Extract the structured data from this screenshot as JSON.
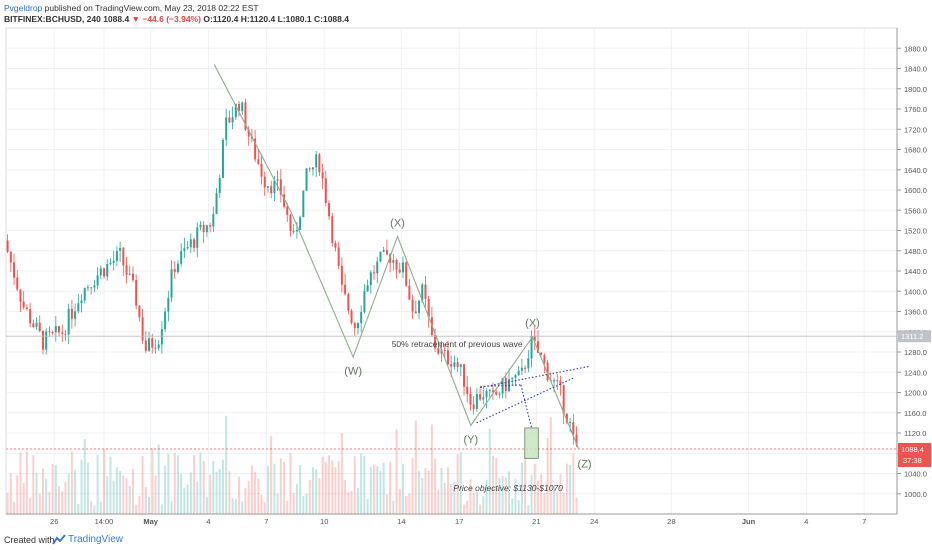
{
  "header": {
    "author": "Pvgeldrop",
    "published": "published on TradingView.com, May 23, 2018 02:22 EST",
    "symbol": "BITFINEX:BCHUSD, 240",
    "price": "1088.4",
    "change": "▼ −44.6 (−3.94%)",
    "o_label": "O:",
    "o": "1120.4",
    "h_label": "H:",
    "h": "1120.4",
    "l_label": "L:",
    "l": "1080.1",
    "c_label": "C:",
    "c": "1088.4"
  },
  "footer": {
    "created": "Created with",
    "brand": "TradingView"
  },
  "colors": {
    "up": "#26a69a",
    "down": "#ef5350",
    "wave": "#8fae8c",
    "triangle": "#2b3aa8",
    "grid": "#eef1f4"
  },
  "chart_data": {
    "type": "candlestick",
    "symbol": "BITFINEX:BCHUSD",
    "interval": "240",
    "ylim": [
      960,
      1920
    ],
    "y_ticks": [
      1000,
      1040,
      1080,
      1120,
      1160,
      1200,
      1240,
      1280,
      1320,
      1360,
      1400,
      1440,
      1480,
      1520,
      1560,
      1600,
      1640,
      1680,
      1720,
      1760,
      1800,
      1840,
      1880
    ],
    "y_tick_labels": [
      "1000.0",
      "1040.0",
      "1080.0",
      "1120.0",
      "1160.0",
      "1200.0",
      "1240.0",
      "1280.0",
      "1320.0",
      "1360.0",
      "1400.0",
      "1440.0",
      "1480.0",
      "1520.0",
      "1560.0",
      "1600.0",
      "1640.0",
      "1680.0",
      "1720.0",
      "1760.0",
      "1800.0",
      "1840.0",
      "1880.0"
    ],
    "x_ticks": [
      {
        "day": 26,
        "label": "26"
      },
      {
        "day": 28.58,
        "label": "14:00"
      },
      {
        "day": 31,
        "label": "May"
      },
      {
        "day": 34,
        "label": "4"
      },
      {
        "day": 37,
        "label": "7"
      },
      {
        "day": 40,
        "label": "10"
      },
      {
        "day": 44,
        "label": "14"
      },
      {
        "day": 47,
        "label": "17"
      },
      {
        "day": 51,
        "label": "21"
      },
      {
        "day": 54,
        "label": "24"
      },
      {
        "day": 58,
        "label": "28"
      },
      {
        "day": 62,
        "label": "Jun"
      },
      {
        "day": 65,
        "label": "4"
      },
      {
        "day": 68,
        "label": "7"
      }
    ],
    "x_range_days": [
      23.5,
      69.7
    ],
    "price_anchors": [
      [
        23.5,
        1500
      ],
      [
        24.5,
        1370
      ],
      [
        25.5,
        1300
      ],
      [
        26.5,
        1320
      ],
      [
        27.5,
        1400
      ],
      [
        28.5,
        1440
      ],
      [
        29.5,
        1470
      ],
      [
        30.3,
        1390
      ],
      [
        30.8,
        1285
      ],
      [
        31.5,
        1310
      ],
      [
        32.3,
        1450
      ],
      [
        33.5,
        1510
      ],
      [
        34.3,
        1540
      ],
      [
        35.0,
        1730
      ],
      [
        35.7,
        1775
      ],
      [
        36.3,
        1690
      ],
      [
        37.0,
        1620
      ],
      [
        37.8,
        1600
      ],
      [
        38.5,
        1500
      ],
      [
        39.2,
        1630
      ],
      [
        39.8,
        1660
      ],
      [
        40.3,
        1560
      ],
      [
        41.0,
        1400
      ],
      [
        41.7,
        1330
      ],
      [
        42.3,
        1420
      ],
      [
        43.0,
        1460
      ],
      [
        43.5,
        1470
      ],
      [
        44.2,
        1440
      ],
      [
        44.7,
        1360
      ],
      [
        45.2,
        1400
      ],
      [
        45.7,
        1300
      ],
      [
        46.3,
        1270
      ],
      [
        46.8,
        1265
      ],
      [
        47.3,
        1230
      ],
      [
        47.7,
        1180
      ],
      [
        48.3,
        1200
      ],
      [
        48.8,
        1185
      ],
      [
        49.3,
        1210
      ],
      [
        49.8,
        1225
      ],
      [
        50.3,
        1230
      ],
      [
        50.8,
        1300
      ],
      [
        51.3,
        1270
      ],
      [
        51.8,
        1230
      ],
      [
        52.3,
        1200
      ],
      [
        52.8,
        1140
      ],
      [
        53.1,
        1088
      ]
    ],
    "current_price": 1088.4,
    "current_price_label": "1088.4",
    "countdown_label": "37:38",
    "reference_price": 1311.2,
    "reference_price_label": "1311.2",
    "wave_path": [
      [
        34.3,
        1848
      ],
      [
        38.3,
        1555
      ],
      [
        41.5,
        1270
      ],
      [
        43.8,
        1508
      ],
      [
        47.6,
        1135
      ],
      [
        50.8,
        1310
      ],
      [
        53.2,
        1088
      ]
    ],
    "wave_labels": [
      {
        "text": "(W)",
        "day": 41.5,
        "price": 1255,
        "below": true
      },
      {
        "text": "(X)",
        "day": 43.8,
        "price": 1520,
        "below": false
      },
      {
        "text": "(Y)",
        "day": 47.6,
        "price": 1120,
        "below": true
      },
      {
        "text": "(X)",
        "day": 50.8,
        "price": 1322,
        "below": false
      },
      {
        "text": "(Z)",
        "day": 53.5,
        "price": 1072,
        "below": true
      }
    ],
    "annotations": [
      {
        "text": "50% retracement of previous wave",
        "day": 43.5,
        "price": 1290
      },
      {
        "text": "Price objective: $1130-$1070",
        "day": 46.7,
        "price": 1005
      }
    ],
    "triangle_upper": [
      [
        48.1,
        1210
      ],
      [
        53.8,
        1252
      ]
    ],
    "triangle_lower": [
      [
        47.9,
        1140
      ],
      [
        53.0,
        1230
      ]
    ],
    "triangle_top": [
      [
        48.1,
        1212
      ],
      [
        50.2,
        1215
      ]
    ],
    "objective_box": {
      "day0": 50.4,
      "day1": 51.1,
      "price_high": 1130,
      "price_low": 1070
    },
    "volume_max": 1
  }
}
